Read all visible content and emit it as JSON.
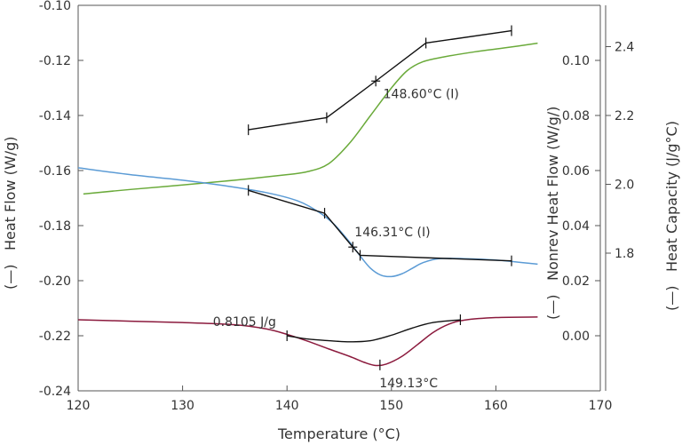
{
  "chart_data": {
    "type": "line",
    "xlabel": "Temperature (°C)",
    "x_ticks": [
      120,
      130,
      140,
      150,
      160,
      170
    ],
    "xlim": [
      120,
      170
    ],
    "axes": {
      "heat_flow": {
        "label": "Heat Flow (W/g)",
        "ylim": [
          -0.24,
          -0.1
        ],
        "ticks": [
          -0.24,
          -0.22,
          -0.2,
          -0.18,
          -0.16,
          -0.14,
          -0.12,
          -0.1
        ],
        "tick_labels": [
          "-0.24",
          "-0.22",
          "-0.20",
          "-0.18",
          "-0.16",
          "-0.14",
          "-0.12",
          "-0.10"
        ]
      },
      "nonrev_heat_flow": {
        "label": "Nonrev Heat Flow (W/g/)",
        "ylim": [
          -0.02,
          0.12
        ],
        "ticks": [
          0.0,
          0.02,
          0.04,
          0.06,
          0.08,
          0.1
        ],
        "tick_labels": [
          "0.00",
          "0.02",
          "0.04",
          "0.06",
          "0.08",
          "0.10"
        ]
      },
      "heat_capacity": {
        "label": "Heat Capacity (J/g°C)",
        "ylim": [
          1.4,
          2.52
        ],
        "ticks": [
          1.8,
          2.0,
          2.2,
          2.4
        ],
        "tick_labels": [
          "1.8",
          "2.0",
          "2.2",
          "2.4"
        ]
      }
    },
    "legend_marker": "(—)",
    "series": [
      {
        "key": "heat_capacity",
        "axis": "heat_capacity",
        "color": "#6aaa3a",
        "points": [
          [
            120.5,
            1.972
          ],
          [
            125,
            1.985
          ],
          [
            130,
            1.998
          ],
          [
            135,
            2.012
          ],
          [
            140,
            2.028
          ],
          [
            142,
            2.037
          ],
          [
            144,
            2.06
          ],
          [
            146,
            2.12
          ],
          [
            148,
            2.2
          ],
          [
            150,
            2.28
          ],
          [
            151.5,
            2.33
          ],
          [
            153,
            2.356
          ],
          [
            155,
            2.37
          ],
          [
            158,
            2.385
          ],
          [
            161,
            2.397
          ],
          [
            164,
            2.41
          ]
        ]
      },
      {
        "key": "heat_flow",
        "axis": "heat_flow",
        "color": "#5b9bd5",
        "points": [
          [
            120,
            -0.159
          ],
          [
            125,
            -0.1615
          ],
          [
            130,
            -0.1635
          ],
          [
            134,
            -0.1655
          ],
          [
            138,
            -0.168
          ],
          [
            141,
            -0.171
          ],
          [
            143,
            -0.175
          ],
          [
            144.5,
            -0.1795
          ],
          [
            146,
            -0.186
          ],
          [
            147,
            -0.191
          ],
          [
            148,
            -0.1955
          ],
          [
            149,
            -0.198
          ],
          [
            150,
            -0.1985
          ],
          [
            151,
            -0.1975
          ],
          [
            152,
            -0.1955
          ],
          [
            153,
            -0.1935
          ],
          [
            154.5,
            -0.192
          ],
          [
            157,
            -0.192
          ],
          [
            160,
            -0.1925
          ],
          [
            164,
            -0.194
          ]
        ]
      },
      {
        "key": "nonrev_heat_flow",
        "axis": "heat_flow",
        "color": "#8b1a3d",
        "points": [
          [
            120,
            -0.2142
          ],
          [
            125,
            -0.2147
          ],
          [
            130,
            -0.2152
          ],
          [
            135,
            -0.216
          ],
          [
            138,
            -0.2175
          ],
          [
            140,
            -0.2195
          ],
          [
            142,
            -0.222
          ],
          [
            144,
            -0.2248
          ],
          [
            146,
            -0.2275
          ],
          [
            147.5,
            -0.2298
          ],
          [
            148.5,
            -0.2308
          ],
          [
            149.5,
            -0.2303
          ],
          [
            151,
            -0.2275
          ],
          [
            152.5,
            -0.2232
          ],
          [
            154,
            -0.2188
          ],
          [
            155.5,
            -0.2158
          ],
          [
            157,
            -0.2143
          ],
          [
            160,
            -0.2134
          ],
          [
            164,
            -0.2132
          ]
        ]
      }
    ],
    "analysis": {
      "glass_transition_cp": {
        "label": "148.60°C (I)",
        "tangent_points": [
          [
            136.3,
            -0.1452
          ],
          [
            143.8,
            -0.1408
          ],
          [
            148.5,
            -0.1275
          ],
          [
            153.3,
            -0.1137
          ],
          [
            161.5,
            -0.1092
          ]
        ]
      },
      "glass_transition_hf": {
        "label": "146.31°C (I)",
        "tangent_points": [
          [
            136.3,
            -0.1672
          ],
          [
            143.6,
            -0.1755
          ],
          [
            146.3,
            -0.1878
          ],
          [
            147.0,
            -0.1908
          ],
          [
            161.5,
            -0.1928
          ]
        ]
      },
      "relaxation_peak": {
        "area_label": "0.8105 J/g",
        "peak_label": "149.13°C",
        "baseline_points": [
          [
            140,
            -0.22
          ],
          [
            142,
            -0.2212
          ],
          [
            144,
            -0.2218
          ],
          [
            146,
            -0.2222
          ],
          [
            148,
            -0.2218
          ],
          [
            150,
            -0.2198
          ],
          [
            152,
            -0.2172
          ],
          [
            154,
            -0.2152
          ],
          [
            156.6,
            -0.2142
          ]
        ],
        "markers": [
          [
            140,
            -0.22
          ],
          [
            148.9,
            -0.2306
          ],
          [
            156.6,
            -0.2142
          ]
        ]
      }
    }
  }
}
